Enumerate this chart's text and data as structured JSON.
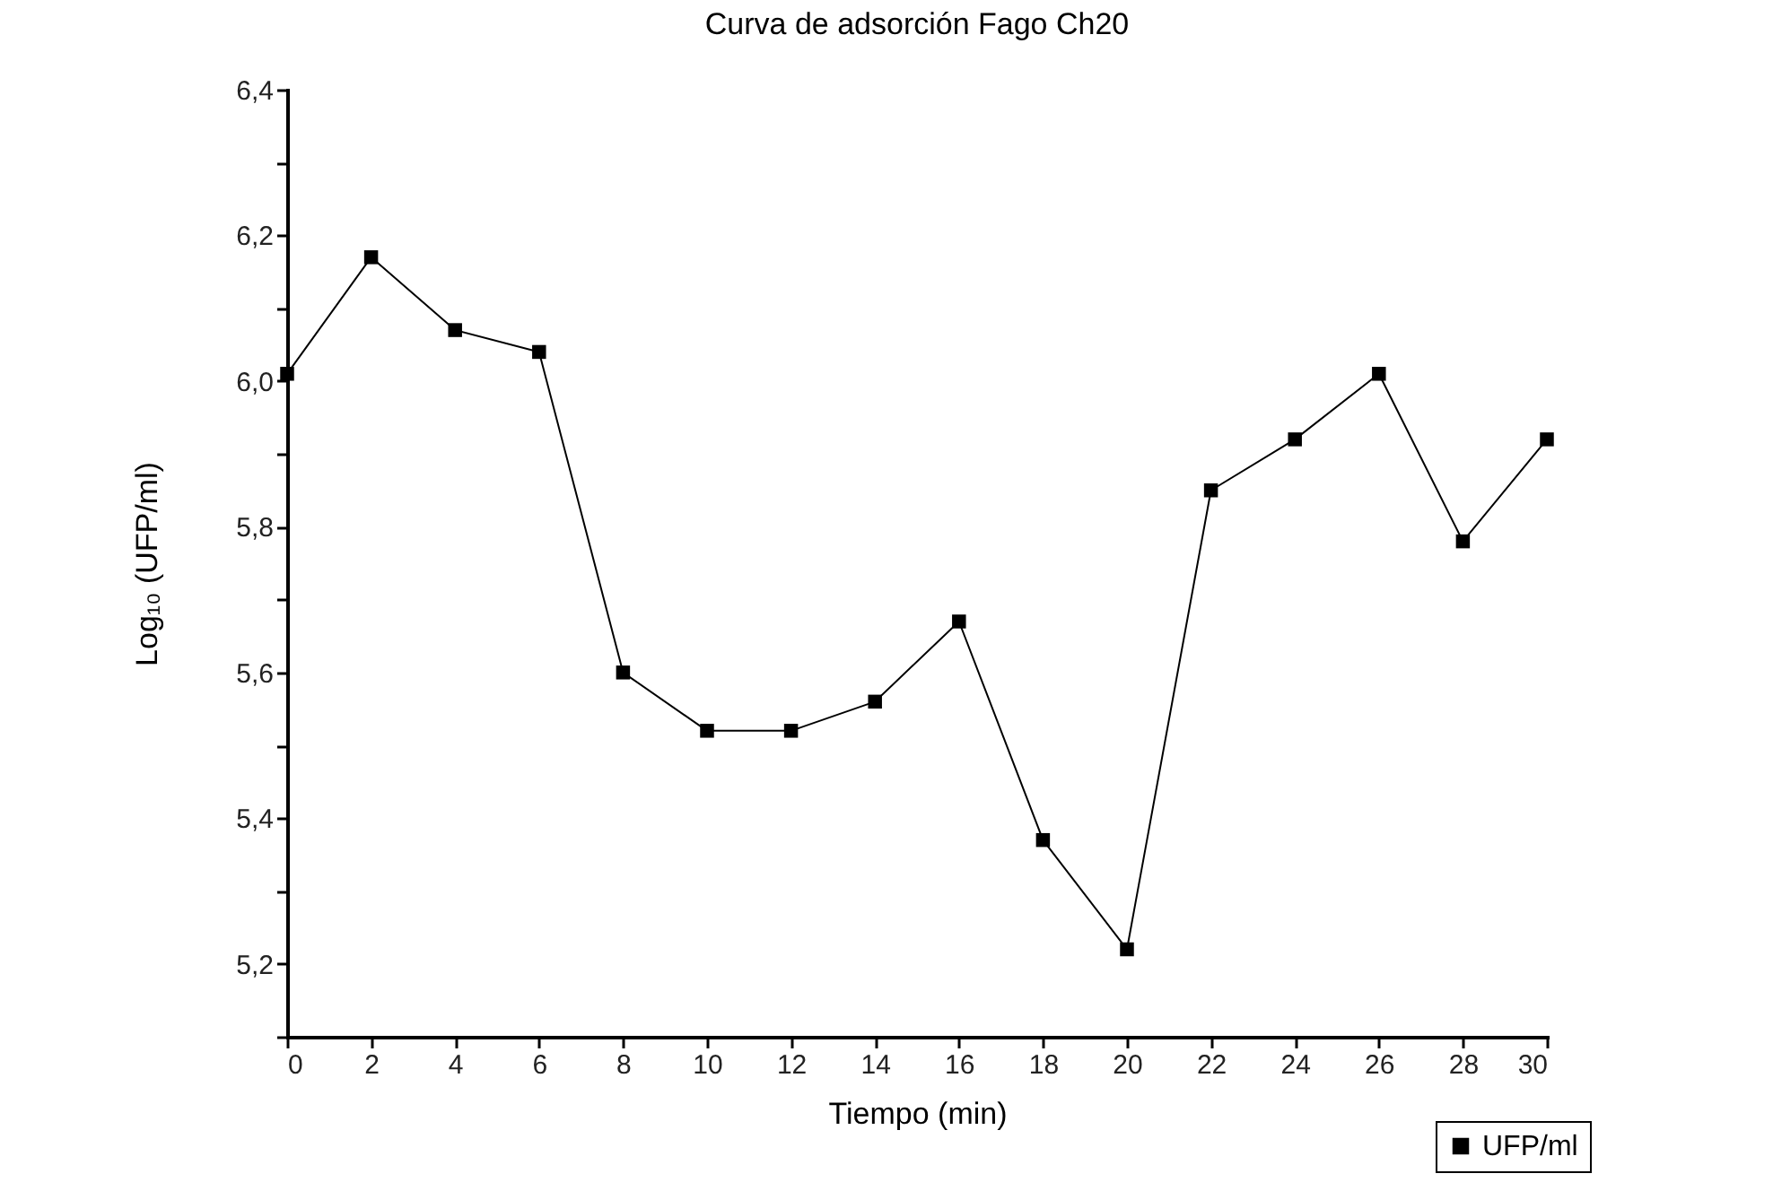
{
  "chart_data": {
    "type": "line",
    "title": "Curva de adsorción Fago Ch20",
    "xlabel": "Tiempo (min)",
    "ylabel": "Log₁₀ (UFP/ml)",
    "x": [
      0,
      2,
      4,
      6,
      8,
      10,
      12,
      14,
      16,
      18,
      20,
      22,
      24,
      26,
      28,
      30
    ],
    "series": [
      {
        "name": "UFP/ml",
        "color": "#000000",
        "values": [
          6.01,
          6.17,
          6.07,
          6.04,
          5.6,
          5.52,
          5.52,
          5.56,
          5.67,
          5.37,
          5.22,
          5.85,
          5.92,
          6.01,
          5.78,
          5.92
        ]
      }
    ],
    "xlim": [
      0,
      30
    ],
    "xticks": [
      0,
      2,
      4,
      6,
      8,
      10,
      12,
      14,
      16,
      18,
      20,
      22,
      24,
      26,
      28,
      30
    ],
    "ylim": [
      5.1,
      6.4
    ],
    "yticks": [
      {
        "value": 5.1,
        "label": null
      },
      {
        "value": 5.2,
        "label": "5,2"
      },
      {
        "value": 5.3,
        "label": null
      },
      {
        "value": 5.4,
        "label": "5,4"
      },
      {
        "value": 5.5,
        "label": null
      },
      {
        "value": 5.6,
        "label": "5,6"
      },
      {
        "value": 5.7,
        "label": null
      },
      {
        "value": 5.8,
        "label": "5,8"
      },
      {
        "value": 5.9,
        "label": null
      },
      {
        "value": 6.0,
        "label": "6,0"
      },
      {
        "value": 6.1,
        "label": null
      },
      {
        "value": 6.2,
        "label": "6,2"
      },
      {
        "value": 6.3,
        "label": null
      },
      {
        "value": 6.4,
        "label": "6,4"
      }
    ],
    "grid": false,
    "legend": "bottom right",
    "marker": "square",
    "line_style": "solid"
  }
}
